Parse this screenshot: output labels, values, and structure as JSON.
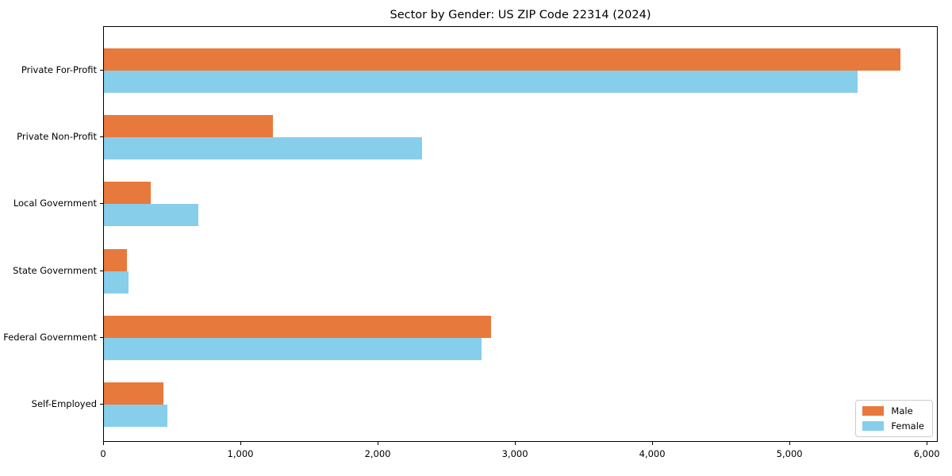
{
  "title": "Sector by Gender: US ZIP Code 22314 (2024)",
  "chart_data": {
    "type": "bar",
    "orientation": "horizontal",
    "title": "Sector by Gender: US ZIP Code 22314 (2024)",
    "categories": [
      "Private For-Profit",
      "Private Non-Profit",
      "Local Government",
      "State Government",
      "Federal Government",
      "Self-Employed"
    ],
    "series": [
      {
        "name": "Male",
        "color": "#e8793d",
        "values": [
          5800,
          1230,
          340,
          170,
          2820,
          435
        ]
      },
      {
        "name": "Female",
        "color": "#87ceeb",
        "values": [
          5490,
          2320,
          690,
          180,
          2750,
          460
        ]
      }
    ],
    "xlabel": "",
    "ylabel": "",
    "xlim": [
      0,
      6080
    ],
    "xticks": [
      0,
      1000,
      2000,
      3000,
      4000,
      5000,
      6000
    ],
    "xtick_labels": [
      "0",
      "1,000",
      "2,000",
      "3,000",
      "4,000",
      "5,000",
      "6,000"
    ],
    "legend_position": "lower right",
    "grid": false,
    "background_color": "#ffffff",
    "axis_color": "#000000"
  }
}
